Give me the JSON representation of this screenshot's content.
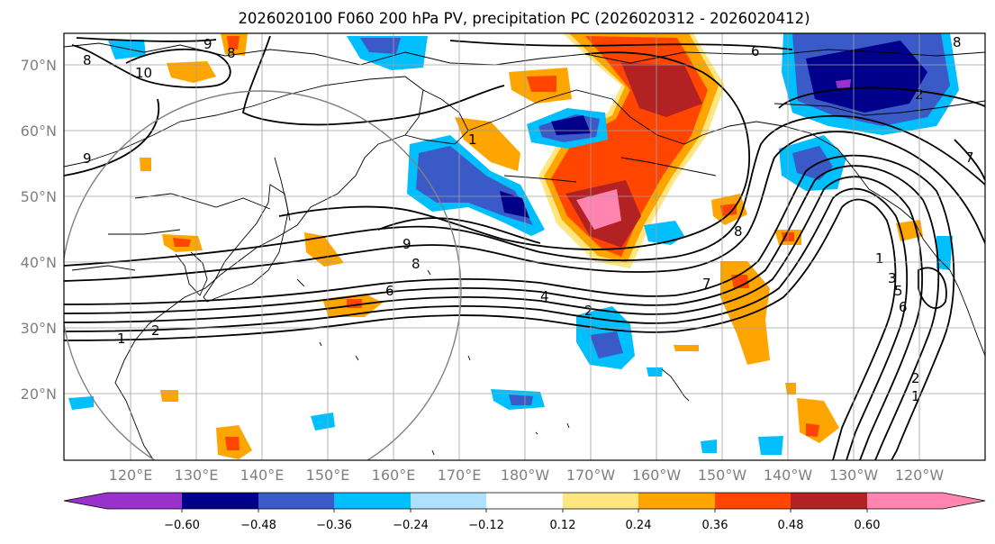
{
  "title": "2026020100 F060 200 hPa PV, precipitation PC (2026020312 - 2026020412)",
  "map": {
    "lat_labels": [
      "70°N",
      "60°N",
      "50°N",
      "40°N",
      "30°N",
      "20°N"
    ],
    "lon_labels": [
      "120°E",
      "130°E",
      "140°E",
      "150°E",
      "160°E",
      "170°E",
      "180°W",
      "170°W",
      "160°W",
      "150°W",
      "140°W",
      "130°W",
      "120°W"
    ],
    "pv_contour_labels": [
      "8",
      "9",
      "10",
      "6",
      "8",
      "9",
      "8",
      "6",
      "4",
      "2",
      "1",
      "2",
      "1",
      "9",
      "8",
      "7",
      "1",
      "3",
      "5",
      "6",
      "8",
      "7",
      "2",
      "1",
      "2"
    ]
  },
  "colorbar": {
    "colors": [
      "#9932cc",
      "#00008b",
      "#3a5bc7",
      "#00bfff",
      "#b0e0ff",
      "#ffffff",
      "#ffe680",
      "#ffa500",
      "#ff4500",
      "#b22222",
      "#ff85b0"
    ],
    "tick_labels": [
      "−0.60",
      "−0.48",
      "−0.36",
      "−0.24",
      "−0.12",
      "0.12",
      "0.24",
      "0.36",
      "0.48",
      "0.60"
    ]
  }
}
